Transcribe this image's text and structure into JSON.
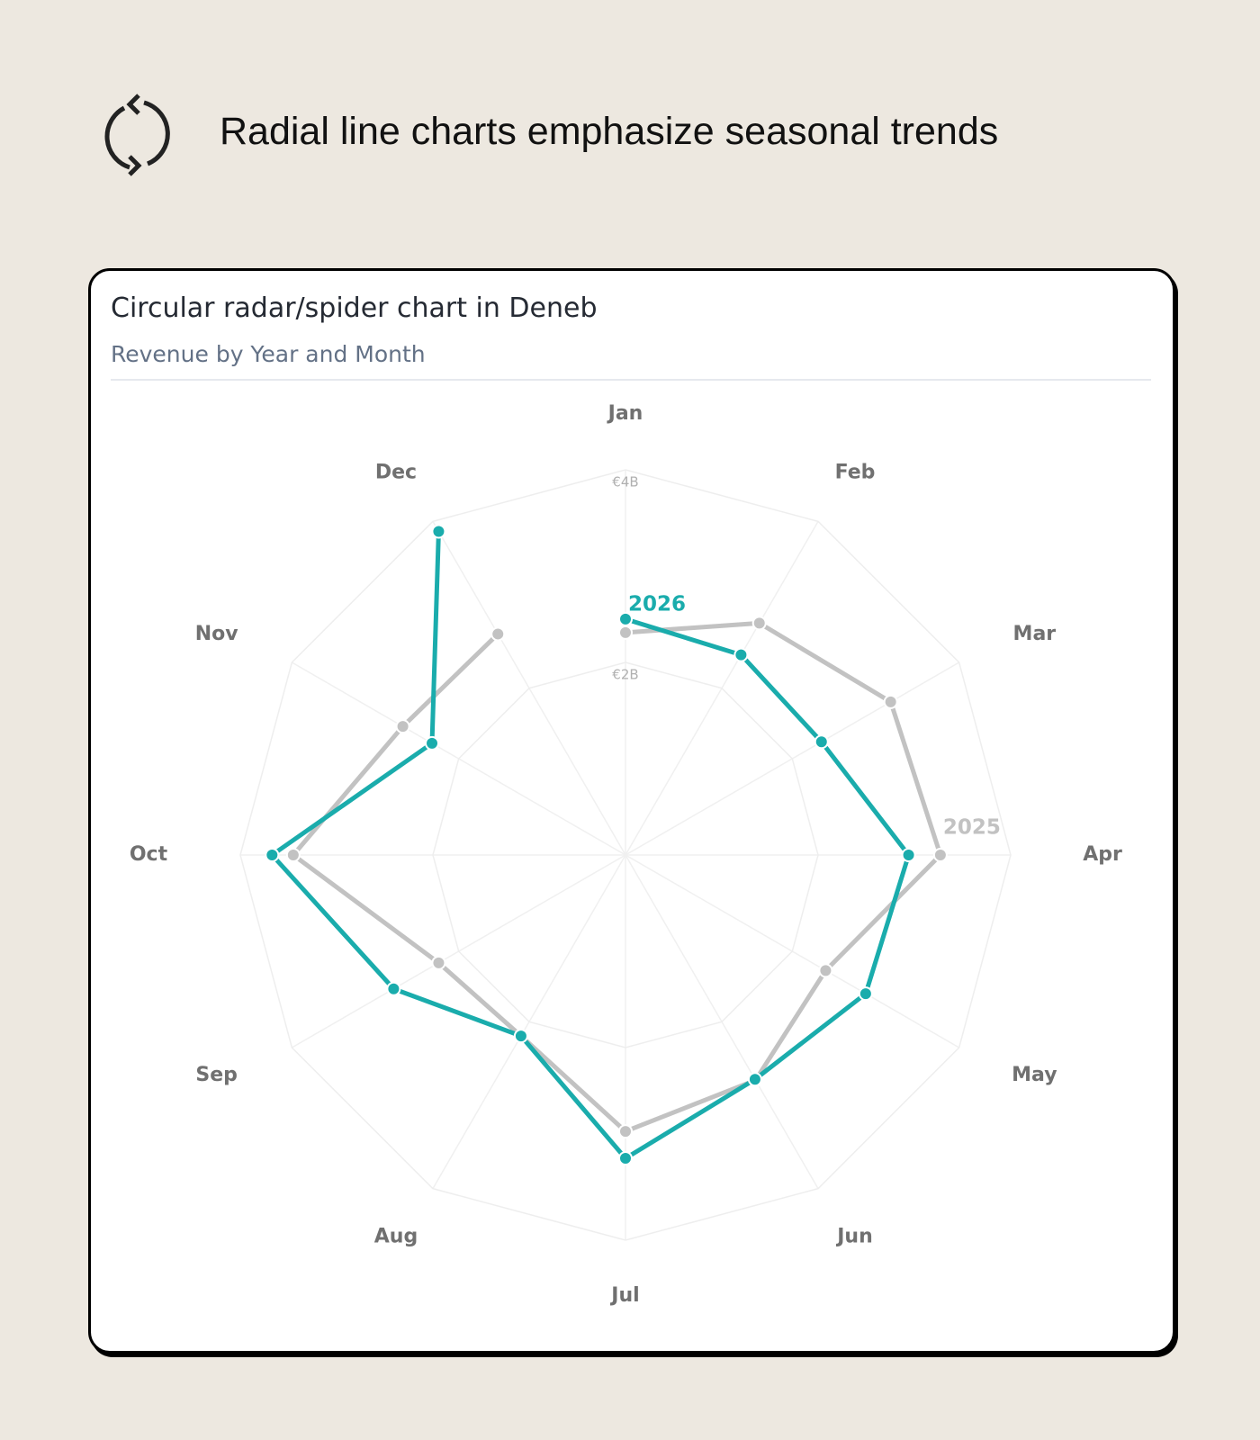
{
  "header": {
    "title": "Radial line charts emphasize seasonal trends"
  },
  "chart_data": {
    "type": "radar",
    "title": "Circular radar/spider chart in Deneb",
    "subtitle": "Revenue by Year and Month",
    "categories": [
      "Jan",
      "Feb",
      "Mar",
      "Apr",
      "May",
      "Jun",
      "Jul",
      "Aug",
      "Sep",
      "Oct",
      "Nov",
      "Dec"
    ],
    "series": [
      {
        "name": "2026",
        "color": "#1aacac",
        "values": [
          2.45,
          2.4,
          2.35,
          2.94,
          2.88,
          2.69,
          3.15,
          2.17,
          2.78,
          3.67,
          2.32,
          3.88
        ]
      },
      {
        "name": "2025",
        "color": "#c2c2c2",
        "values": [
          2.31,
          2.78,
          3.18,
          3.27,
          2.4,
          2.7,
          2.87,
          2.17,
          2.24,
          3.45,
          2.67,
          2.65
        ]
      }
    ],
    "rlim": [
      0,
      4
    ],
    "rticks": [
      {
        "value": 2,
        "label": "€2B"
      },
      {
        "value": 4,
        "label": "€4B"
      }
    ],
    "grid": true
  }
}
